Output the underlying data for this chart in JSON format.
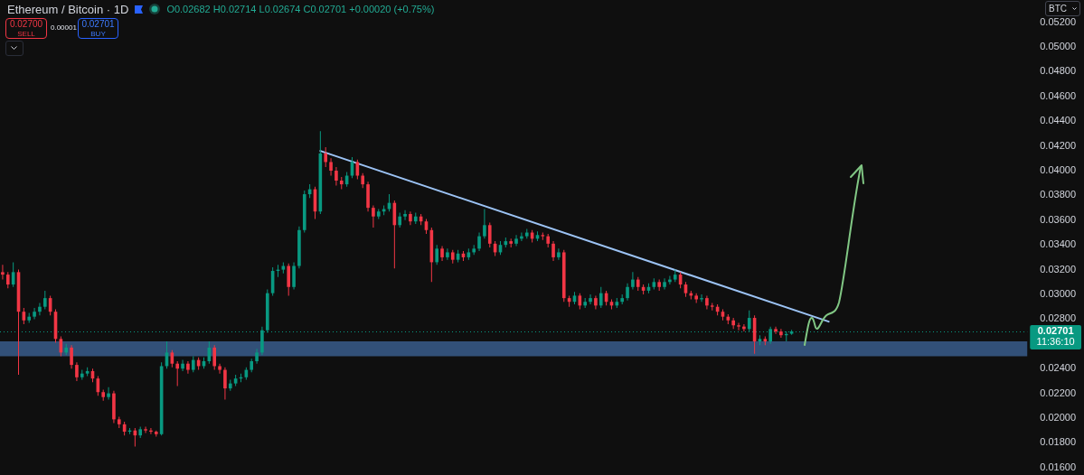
{
  "chart_data": {
    "type": "candlestick",
    "title": "Ethereum / Bitcoin · 1D",
    "subtitle": "O0.02682 H0.02714 L0.02674 C0.02701 +0.00020 (+0.75%)",
    "ylabel": "BTC",
    "annotations": [
      "0.02700",
      "SELL",
      "0.00001",
      "0.02701",
      "BUY",
      "11:36:10"
    ],
    "categories": [
      null,
      null,
      null,
      null,
      null,
      null,
      null,
      null,
      null,
      null,
      null,
      null,
      null,
      null,
      null,
      null,
      null,
      null,
      null,
      null,
      null,
      null,
      null,
      null,
      null,
      null,
      null,
      null,
      null,
      null,
      null,
      null,
      null,
      null,
      null,
      null,
      null,
      null,
      null,
      null,
      null,
      null,
      null,
      null,
      null,
      null,
      null,
      null,
      null,
      null,
      null,
      null,
      null,
      null,
      null,
      null,
      null,
      null,
      null,
      null,
      null,
      null,
      null,
      null,
      null,
      null,
      null,
      null,
      null,
      null,
      null,
      null,
      null,
      null,
      null,
      null,
      null,
      null,
      null,
      null,
      null,
      null,
      null,
      null,
      null,
      null,
      null,
      null,
      null,
      null,
      null,
      null,
      null,
      null,
      null,
      null,
      null,
      null,
      null,
      null,
      null,
      null,
      null,
      null,
      null,
      null,
      null,
      null,
      null,
      null,
      null,
      null,
      null,
      null,
      null,
      null,
      null,
      null,
      null,
      null,
      null,
      null,
      null,
      null,
      null,
      null,
      null,
      null,
      null,
      null,
      null,
      null,
      null,
      null,
      null,
      null,
      null,
      null,
      null,
      null,
      null,
      null,
      null,
      null,
      null,
      null,
      null,
      null,
      null,
      null,
      null,
      null,
      null,
      null,
      null,
      null,
      null,
      null,
      null,
      null,
      null,
      null,
      null,
      null,
      null,
      null,
      null,
      null,
      null,
      null,
      null,
      null,
      null,
      null,
      null,
      null,
      null,
      null,
      null,
      null,
      null,
      null,
      null,
      null,
      null,
      null,
      null,
      null,
      null,
      null,
      null,
      null,
      null,
      null
    ],
    "ohlc": [
      [
        0.0318,
        0.0324,
        0.0312,
        0.0316
      ],
      [
        0.0316,
        0.0318,
        0.0305,
        0.0308
      ],
      [
        0.0308,
        0.0326,
        0.0306,
        0.0318
      ],
      [
        0.0318,
        0.032,
        0.0235,
        0.0286
      ],
      [
        0.0286,
        0.0289,
        0.0276,
        0.0279
      ],
      [
        0.0279,
        0.0285,
        0.0277,
        0.0282
      ],
      [
        0.0282,
        0.0289,
        0.028,
        0.0286
      ],
      [
        0.0286,
        0.0293,
        0.0283,
        0.029
      ],
      [
        0.029,
        0.0303,
        0.0288,
        0.0297
      ],
      [
        0.0297,
        0.0299,
        0.0283,
        0.0286
      ],
      [
        0.0286,
        0.0288,
        0.0261,
        0.0264
      ],
      [
        0.0264,
        0.0266,
        0.025,
        0.0253
      ],
      [
        0.0253,
        0.026,
        0.0251,
        0.0257
      ],
      [
        0.0257,
        0.0259,
        0.024,
        0.0243
      ],
      [
        0.0243,
        0.0245,
        0.023,
        0.0233
      ],
      [
        0.0233,
        0.0239,
        0.0231,
        0.0236
      ],
      [
        0.0236,
        0.0241,
        0.0234,
        0.0238
      ],
      [
        0.0238,
        0.024,
        0.0229,
        0.0232
      ],
      [
        0.0232,
        0.0234,
        0.0218,
        0.0221
      ],
      [
        0.0221,
        0.0223,
        0.0214,
        0.0217
      ],
      [
        0.0217,
        0.0225,
        0.0215,
        0.022
      ],
      [
        0.022,
        0.0222,
        0.0196,
        0.0199
      ],
      [
        0.0199,
        0.0201,
        0.0192,
        0.0195
      ],
      [
        0.0195,
        0.0197,
        0.0186,
        0.0189
      ],
      [
        0.0189,
        0.0192,
        0.0187,
        0.019
      ],
      [
        0.019,
        0.0192,
        0.0177,
        0.0186
      ],
      [
        0.0186,
        0.0193,
        0.0184,
        0.0191
      ],
      [
        0.0191,
        0.0193,
        0.0188,
        0.019
      ],
      [
        0.019,
        0.0192,
        0.0187,
        0.0189
      ],
      [
        0.0189,
        0.019,
        0.0185,
        0.0187
      ],
      [
        0.0187,
        0.0245,
        0.0186,
        0.0242
      ],
      [
        0.0242,
        0.0262,
        0.024,
        0.0253
      ],
      [
        0.0253,
        0.0255,
        0.0241,
        0.0244
      ],
      [
        0.0244,
        0.0246,
        0.0226,
        0.024
      ],
      [
        0.024,
        0.0247,
        0.0238,
        0.0244
      ],
      [
        0.0244,
        0.0246,
        0.0236,
        0.0239
      ],
      [
        0.0239,
        0.025,
        0.0237,
        0.0247
      ],
      [
        0.0247,
        0.0249,
        0.0239,
        0.0242
      ],
      [
        0.0242,
        0.0249,
        0.024,
        0.0246
      ],
      [
        0.0246,
        0.0262,
        0.0244,
        0.0257
      ],
      [
        0.0257,
        0.0259,
        0.0239,
        0.0242
      ],
      [
        0.0242,
        0.0244,
        0.0236,
        0.0239
      ],
      [
        0.0239,
        0.0241,
        0.0215,
        0.0224
      ],
      [
        0.0224,
        0.0231,
        0.0222,
        0.0228
      ],
      [
        0.0228,
        0.0235,
        0.0226,
        0.0232
      ],
      [
        0.0232,
        0.0236,
        0.0229,
        0.0233
      ],
      [
        0.0233,
        0.0241,
        0.0231,
        0.0239
      ],
      [
        0.0239,
        0.0248,
        0.0237,
        0.0246
      ],
      [
        0.0246,
        0.0256,
        0.0244,
        0.0253
      ],
      [
        0.0253,
        0.0274,
        0.0251,
        0.0271
      ],
      [
        0.0271,
        0.0304,
        0.0269,
        0.0301
      ],
      [
        0.0301,
        0.0322,
        0.0299,
        0.0319
      ],
      [
        0.0319,
        0.0324,
        0.0314,
        0.032
      ],
      [
        0.032,
        0.0326,
        0.0317,
        0.0323
      ],
      [
        0.0323,
        0.0325,
        0.0299,
        0.0306
      ],
      [
        0.0306,
        0.0326,
        0.0304,
        0.0323
      ],
      [
        0.0323,
        0.0355,
        0.0321,
        0.0352
      ],
      [
        0.0352,
        0.0384,
        0.035,
        0.0381
      ],
      [
        0.0381,
        0.0389,
        0.0378,
        0.0385
      ],
      [
        0.0385,
        0.0387,
        0.0361,
        0.0367
      ],
      [
        0.0367,
        0.0432,
        0.0365,
        0.0414
      ],
      [
        0.0414,
        0.0419,
        0.0403,
        0.0407
      ],
      [
        0.0407,
        0.041,
        0.0396,
        0.04
      ],
      [
        0.04,
        0.0403,
        0.0388,
        0.0392
      ],
      [
        0.0392,
        0.0395,
        0.0385,
        0.0389
      ],
      [
        0.0389,
        0.0399,
        0.0387,
        0.0396
      ],
      [
        0.0396,
        0.0411,
        0.0394,
        0.0407
      ],
      [
        0.0407,
        0.0409,
        0.0393,
        0.0396
      ],
      [
        0.0396,
        0.0398,
        0.0386,
        0.0389
      ],
      [
        0.0389,
        0.0391,
        0.0367,
        0.037
      ],
      [
        0.037,
        0.0372,
        0.0354,
        0.0363
      ],
      [
        0.0363,
        0.0369,
        0.0361,
        0.0367
      ],
      [
        0.0367,
        0.0372,
        0.0364,
        0.0369
      ],
      [
        0.0369,
        0.0381,
        0.0367,
        0.0374
      ],
      [
        0.0374,
        0.0376,
        0.0321,
        0.0356
      ],
      [
        0.0356,
        0.0366,
        0.0354,
        0.0363
      ],
      [
        0.0363,
        0.0368,
        0.036,
        0.0365
      ],
      [
        0.0365,
        0.0367,
        0.0356,
        0.0359
      ],
      [
        0.0359,
        0.0366,
        0.0357,
        0.0363
      ],
      [
        0.0363,
        0.0365,
        0.0356,
        0.0359
      ],
      [
        0.0359,
        0.0361,
        0.0349,
        0.0352
      ],
      [
        0.0352,
        0.0354,
        0.031,
        0.0326
      ],
      [
        0.0326,
        0.034,
        0.0324,
        0.0337
      ],
      [
        0.0337,
        0.0339,
        0.0327,
        0.033
      ],
      [
        0.033,
        0.0337,
        0.0328,
        0.0334
      ],
      [
        0.0334,
        0.0336,
        0.0325,
        0.0328
      ],
      [
        0.0328,
        0.0336,
        0.0326,
        0.0333
      ],
      [
        0.0333,
        0.0335,
        0.0327,
        0.033
      ],
      [
        0.033,
        0.0337,
        0.0328,
        0.0334
      ],
      [
        0.0334,
        0.034,
        0.0332,
        0.0337
      ],
      [
        0.0337,
        0.035,
        0.0335,
        0.0347
      ],
      [
        0.0347,
        0.0369,
        0.0345,
        0.0356
      ],
      [
        0.0356,
        0.0358,
        0.0338,
        0.0341
      ],
      [
        0.0341,
        0.0343,
        0.0331,
        0.0334
      ],
      [
        0.0334,
        0.0343,
        0.0332,
        0.034
      ],
      [
        0.034,
        0.0346,
        0.0338,
        0.0343
      ],
      [
        0.0343,
        0.0345,
        0.0338,
        0.0341
      ],
      [
        0.0341,
        0.0348,
        0.0339,
        0.0345
      ],
      [
        0.0345,
        0.035,
        0.0343,
        0.0347
      ],
      [
        0.0347,
        0.0353,
        0.0345,
        0.035
      ],
      [
        0.035,
        0.0352,
        0.0342,
        0.0345
      ],
      [
        0.0345,
        0.0351,
        0.0343,
        0.0348
      ],
      [
        0.0348,
        0.035,
        0.0344,
        0.0347
      ],
      [
        0.0347,
        0.0349,
        0.0338,
        0.0341
      ],
      [
        0.0341,
        0.0343,
        0.0327,
        0.033
      ],
      [
        0.033,
        0.0337,
        0.0328,
        0.0334
      ],
      [
        0.0334,
        0.0336,
        0.0294,
        0.0297
      ],
      [
        0.0297,
        0.0299,
        0.029,
        0.0294
      ],
      [
        0.0294,
        0.0302,
        0.0292,
        0.0299
      ],
      [
        0.0299,
        0.0301,
        0.0288,
        0.0291
      ],
      [
        0.0291,
        0.0297,
        0.0289,
        0.0294
      ],
      [
        0.0294,
        0.03,
        0.0292,
        0.0297
      ],
      [
        0.0297,
        0.0299,
        0.0288,
        0.0291
      ],
      [
        0.0291,
        0.0306,
        0.0289,
        0.0301
      ],
      [
        0.0301,
        0.0303,
        0.0291,
        0.0294
      ],
      [
        0.0294,
        0.0296,
        0.0288,
        0.0291
      ],
      [
        0.0291,
        0.0297,
        0.0289,
        0.0294
      ],
      [
        0.0294,
        0.03,
        0.0292,
        0.0297
      ],
      [
        0.0297,
        0.0309,
        0.0295,
        0.0306
      ],
      [
        0.0306,
        0.0318,
        0.0304,
        0.0312
      ],
      [
        0.0312,
        0.0314,
        0.0303,
        0.0306
      ],
      [
        0.0306,
        0.0308,
        0.03,
        0.0303
      ],
      [
        0.0303,
        0.0309,
        0.0301,
        0.0306
      ],
      [
        0.0306,
        0.0313,
        0.0304,
        0.031
      ],
      [
        0.031,
        0.0312,
        0.0303,
        0.0306
      ],
      [
        0.0306,
        0.0313,
        0.0304,
        0.031
      ],
      [
        0.031,
        0.0315,
        0.0308,
        0.0312
      ],
      [
        0.0312,
        0.032,
        0.031,
        0.0316
      ],
      [
        0.0316,
        0.0318,
        0.0305,
        0.0308
      ],
      [
        0.0308,
        0.031,
        0.0298,
        0.0301
      ],
      [
        0.0301,
        0.0303,
        0.0296,
        0.0299
      ],
      [
        0.0299,
        0.0301,
        0.0293,
        0.0296
      ],
      [
        0.0296,
        0.03,
        0.0294,
        0.0297
      ],
      [
        0.0297,
        0.0299,
        0.0288,
        0.0291
      ],
      [
        0.0291,
        0.0293,
        0.0287,
        0.029
      ],
      [
        0.029,
        0.0292,
        0.0283,
        0.0286
      ],
      [
        0.0286,
        0.0288,
        0.0279,
        0.0282
      ],
      [
        0.0282,
        0.0284,
        0.0276,
        0.0279
      ],
      [
        0.0279,
        0.0281,
        0.0272,
        0.0275
      ],
      [
        0.0275,
        0.0277,
        0.0271,
        0.0274
      ],
      [
        0.0274,
        0.0276,
        0.027,
        0.0272
      ],
      [
        0.0272,
        0.0287,
        0.027,
        0.0281
      ],
      [
        0.0281,
        0.0283,
        0.0252,
        0.0262
      ],
      [
        0.0262,
        0.0267,
        0.0259,
        0.0264
      ],
      [
        0.0264,
        0.0266,
        0.0259,
        0.0262
      ],
      [
        0.0262,
        0.0274,
        0.026,
        0.0272
      ],
      [
        0.0272,
        0.0274,
        0.0268,
        0.027
      ],
      [
        0.027,
        0.0272,
        0.0265,
        0.0267
      ],
      [
        0.0267,
        0.027,
        0.0262,
        0.0268
      ],
      [
        0.02682,
        0.02714,
        0.02674,
        0.02701
      ],
      null,
      null,
      null,
      null,
      null,
      null,
      null,
      null,
      null,
      null,
      null,
      null,
      null,
      null,
      null,
      null,
      null,
      null,
      null,
      null,
      null,
      null,
      null,
      null,
      null,
      null,
      null,
      null,
      null,
      null,
      null,
      null,
      null,
      null,
      null,
      null,
      null,
      null,
      null,
      null,
      null,
      null,
      null,
      null
    ],
    "colors": [
      "#f23645",
      "#f23645",
      "#089981",
      "#f23645",
      "#f23645",
      "#089981",
      "#089981",
      "#089981",
      "#089981",
      "#f23645",
      "#f23645",
      "#f23645",
      "#089981",
      "#f23645",
      "#f23645",
      "#089981",
      "#089981",
      "#f23645",
      "#f23645",
      "#f23645",
      "#089981",
      "#f23645",
      "#f23645",
      "#f23645",
      "#089981",
      "#f23645",
      "#089981",
      "#f23645",
      "#f23645",
      "#f23645",
      "#089981",
      "#089981",
      "#f23645",
      "#f23645",
      "#089981",
      "#f23645",
      "#089981",
      "#f23645",
      "#089981",
      "#089981",
      "#f23645",
      "#f23645",
      "#f23645",
      "#089981",
      "#089981",
      "#089981",
      "#089981",
      "#089981",
      "#089981",
      "#089981",
      "#089981",
      "#089981",
      "#089981",
      "#089981",
      "#f23645",
      "#089981",
      "#089981",
      "#089981",
      "#089981",
      "#f23645",
      "#089981",
      "#f23645",
      "#f23645",
      "#f23645",
      "#f23645",
      "#089981",
      "#089981",
      "#f23645",
      "#f23645",
      "#f23645",
      "#f23645",
      "#089981",
      "#089981",
      "#089981",
      "#f23645",
      "#089981",
      "#089981",
      "#f23645",
      "#089981",
      "#f23645",
      "#f23645",
      "#f23645",
      "#089981",
      "#f23645",
      "#089981",
      "#f23645",
      "#089981",
      "#f23645",
      "#089981",
      "#089981",
      "#089981",
      "#089981",
      "#f23645",
      "#f23645",
      "#089981",
      "#089981",
      "#f23645",
      "#089981",
      "#089981",
      "#089981",
      "#f23645",
      "#089981",
      "#f23645",
      "#f23645",
      "#f23645",
      "#089981",
      "#f23645",
      "#f23645",
      "#089981",
      "#f23645",
      "#089981",
      "#089981",
      "#f23645",
      "#089981",
      "#f23645",
      "#f23645",
      "#089981",
      "#089981",
      "#089981",
      "#089981",
      "#f23645",
      "#f23645",
      "#089981",
      "#089981",
      "#f23645",
      "#089981",
      "#089981",
      "#089981",
      "#f23645",
      "#f23645",
      "#f23645",
      "#f23645",
      "#089981",
      "#f23645",
      "#f23645",
      "#f23645",
      "#f23645",
      "#f23645",
      "#f23645",
      "#f23645",
      "#f23645",
      "#089981",
      "#f23645",
      "#089981",
      "#f23645",
      "#089981",
      "#f23645",
      "#f23645",
      "#089981",
      "#089981",
      null,
      null,
      null,
      null,
      null,
      null,
      null,
      null,
      null,
      null,
      null,
      null,
      null,
      null,
      null,
      null,
      null,
      null,
      null,
      null,
      null,
      null,
      null,
      null,
      null,
      null,
      null,
      null,
      null,
      null,
      null,
      null,
      null,
      null,
      null,
      null,
      null,
      null,
      null,
      null,
      null,
      null,
      null,
      null
    ],
    "series": [
      {
        "type": "line",
        "color": "#9cc3f5",
        "values": [
          null,
          null,
          null,
          null,
          null,
          null,
          null,
          null,
          null,
          null,
          null,
          null,
          null,
          null,
          null,
          null,
          null,
          null,
          null,
          null,
          null,
          null,
          null,
          null,
          null,
          null,
          null,
          null,
          null,
          null,
          null,
          null,
          null,
          null,
          null,
          null,
          null,
          null,
          null,
          null,
          null,
          null,
          null,
          null,
          null,
          null,
          null,
          null,
          null,
          null,
          null,
          null,
          null,
          null,
          null,
          null,
          null,
          null,
          null,
          null,
          0.0416,
          null,
          null,
          null,
          null,
          null,
          null,
          null,
          null,
          null,
          null,
          null,
          null,
          null,
          null,
          null,
          null,
          null,
          null,
          null,
          null,
          null,
          null,
          null,
          null,
          null,
          null,
          null,
          null,
          null,
          null,
          null,
          null,
          null,
          null,
          null,
          null,
          null,
          null,
          null,
          null,
          null,
          null,
          null,
          null,
          null,
          null,
          null,
          null,
          null,
          null,
          null,
          null,
          null,
          null,
          null,
          null,
          null,
          null,
          null,
          null,
          null,
          null,
          null,
          null,
          null,
          null,
          null,
          null,
          null,
          null,
          null,
          null,
          null,
          null,
          null,
          null,
          null,
          null,
          null,
          null,
          null,
          null,
          null,
          null,
          null,
          null,
          null,
          null,
          null,
          null,
          null,
          null,
          null,
          null,
          null,
          0.0278,
          null,
          null,
          null,
          null,
          null,
          null,
          null,
          null,
          null,
          null,
          null,
          null,
          null,
          null,
          null,
          null,
          null,
          null,
          null,
          null,
          null,
          null,
          null,
          null,
          null,
          null,
          null,
          null,
          null,
          null,
          null,
          null,
          null,
          null,
          null,
          null,
          null
        ]
      }
    ],
    "ylim": [
      0.0154,
      0.0538
    ],
    "yticks": [
      {
        "value": 0.016,
        "label": "0.01600"
      },
      {
        "value": 0.018,
        "label": "0.01800"
      },
      {
        "value": 0.02,
        "label": "0.02000"
      },
      {
        "value": 0.022,
        "label": "0.02200"
      },
      {
        "value": 0.024,
        "label": "0.02400"
      },
      {
        "value": 0.028,
        "label": "0.02800"
      },
      {
        "value": 0.03,
        "label": "0.03000"
      },
      {
        "value": 0.032,
        "label": "0.03200"
      },
      {
        "value": 0.034,
        "label": "0.03400"
      },
      {
        "value": 0.036,
        "label": "0.03600"
      },
      {
        "value": 0.038,
        "label": "0.03800"
      },
      {
        "value": 0.04,
        "label": "0.04000"
      },
      {
        "value": 0.042,
        "label": "0.04200"
      },
      {
        "value": 0.044,
        "label": "0.04400"
      },
      {
        "value": 0.046,
        "label": "0.04600"
      },
      {
        "value": 0.048,
        "label": "0.04800"
      },
      {
        "value": 0.05,
        "label": "0.05000"
      },
      {
        "value": 0.052,
        "label": "0.05200"
      }
    ],
    "bands": [
      {
        "axis": "y",
        "from": 0.025,
        "to": 0.0262,
        "color": "#325078"
      }
    ],
    "ref_lines": [
      {
        "axis": "y",
        "value": 0.02701,
        "label": "0.02701",
        "color": "#089981",
        "line_style": "dotted"
      }
    ],
    "tick_labels": "y"
  }
}
